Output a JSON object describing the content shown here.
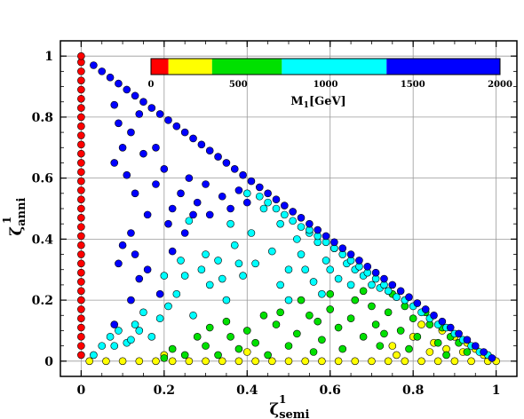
{
  "chart_data": {
    "type": "scatter",
    "x_axis": {
      "label": "ζ",
      "sup": "1",
      "sub": "semi",
      "range": [
        -0.05,
        1.05
      ],
      "ticks": [
        "0",
        "0.2",
        "0.4",
        "0.6",
        "0.8",
        "1"
      ]
    },
    "y_axis": {
      "label": "ζ",
      "sup": "1",
      "sub": "anni",
      "range": [
        -0.05,
        1.05
      ],
      "ticks": [
        "0",
        "0.2",
        "0.4",
        "0.6",
        "0.8",
        "1"
      ]
    },
    "grid": true,
    "colorbar": {
      "title": "M",
      "title_sub": "1",
      "title_suffix": "[GeV]",
      "range": [
        0,
        2000
      ],
      "ticks": [
        "0",
        "500",
        "1000",
        "1500",
        "2000"
      ],
      "bands": [
        {
          "from": 0,
          "to": 100,
          "color": "#ff0000"
        },
        {
          "from": 100,
          "to": 350,
          "color": "#ffff00"
        },
        {
          "from": 350,
          "to": 750,
          "color": "#00e000"
        },
        {
          "from": 750,
          "to": 1350,
          "color": "#00ffff"
        },
        {
          "from": 1350,
          "to": 2000,
          "color": "#0000ff"
        }
      ]
    },
    "series": [
      {
        "mass_band": "0-100 GeV",
        "color": "#ff0000",
        "pattern": "x=0, y in [0,1]",
        "points": [
          [
            0,
            0.02
          ],
          [
            0,
            0.05
          ],
          [
            0,
            0.08
          ],
          [
            0,
            0.11
          ],
          [
            0,
            0.14
          ],
          [
            0,
            0.17
          ],
          [
            0,
            0.2
          ],
          [
            0,
            0.23
          ],
          [
            0,
            0.26
          ],
          [
            0,
            0.29
          ],
          [
            0,
            0.32
          ],
          [
            0,
            0.35
          ],
          [
            0,
            0.38
          ],
          [
            0,
            0.41
          ],
          [
            0,
            0.44
          ],
          [
            0,
            0.47
          ],
          [
            0,
            0.5
          ],
          [
            0,
            0.53
          ],
          [
            0,
            0.56
          ],
          [
            0,
            0.59
          ],
          [
            0,
            0.62
          ],
          [
            0,
            0.65
          ],
          [
            0,
            0.68
          ],
          [
            0,
            0.71
          ],
          [
            0,
            0.74
          ],
          [
            0,
            0.77
          ],
          [
            0,
            0.8
          ],
          [
            0,
            0.83
          ],
          [
            0,
            0.86
          ],
          [
            0,
            0.89
          ],
          [
            0,
            0.92
          ],
          [
            0,
            0.95
          ],
          [
            0,
            0.98
          ],
          [
            0,
            1.0
          ]
        ]
      },
      {
        "mass_band": "100-350 GeV",
        "color": "#ffff00",
        "pattern": "y≈0 and near x+y=1, x>0.75",
        "points": [
          [
            0.02,
            0
          ],
          [
            0.06,
            0
          ],
          [
            0.1,
            0
          ],
          [
            0.14,
            0
          ],
          [
            0.18,
            0
          ],
          [
            0.22,
            0
          ],
          [
            0.26,
            0
          ],
          [
            0.3,
            0
          ],
          [
            0.34,
            0
          ],
          [
            0.38,
            0
          ],
          [
            0.42,
            0
          ],
          [
            0.46,
            0
          ],
          [
            0.5,
            0
          ],
          [
            0.54,
            0
          ],
          [
            0.58,
            0
          ],
          [
            0.62,
            0
          ],
          [
            0.66,
            0
          ],
          [
            0.7,
            0
          ],
          [
            0.74,
            0
          ],
          [
            0.78,
            0
          ],
          [
            0.82,
            0
          ],
          [
            0.86,
            0
          ],
          [
            0.9,
            0
          ],
          [
            0.94,
            0
          ],
          [
            0.98,
            0
          ],
          [
            1.0,
            0
          ],
          [
            0.2,
            0.02
          ],
          [
            0.4,
            0.03
          ],
          [
            0.75,
            0.05
          ],
          [
            0.8,
            0.08
          ],
          [
            0.85,
            0.06
          ],
          [
            0.88,
            0.04
          ],
          [
            0.9,
            0.08
          ],
          [
            0.92,
            0.03
          ],
          [
            0.95,
            0.04
          ],
          [
            0.97,
            0.02
          ],
          [
            0.93,
            0.06
          ],
          [
            0.82,
            0.12
          ],
          [
            0.87,
            0.1
          ],
          [
            0.76,
            0.02
          ],
          [
            0.84,
            0.03
          ]
        ]
      },
      {
        "mass_band": "350-750 GeV",
        "color": "#00e000",
        "pattern": "y<0.2, spread in x",
        "points": [
          [
            0.2,
            0.01
          ],
          [
            0.22,
            0.04
          ],
          [
            0.25,
            0.02
          ],
          [
            0.3,
            0.05
          ],
          [
            0.33,
            0.02
          ],
          [
            0.36,
            0.08
          ],
          [
            0.38,
            0.04
          ],
          [
            0.4,
            0.1
          ],
          [
            0.42,
            0.06
          ],
          [
            0.45,
            0.02
          ],
          [
            0.47,
            0.12
          ],
          [
            0.5,
            0.05
          ],
          [
            0.52,
            0.09
          ],
          [
            0.55,
            0.15
          ],
          [
            0.56,
            0.03
          ],
          [
            0.58,
            0.07
          ],
          [
            0.6,
            0.17
          ],
          [
            0.62,
            0.11
          ],
          [
            0.63,
            0.04
          ],
          [
            0.65,
            0.14
          ],
          [
            0.66,
            0.2
          ],
          [
            0.68,
            0.08
          ],
          [
            0.7,
            0.18
          ],
          [
            0.71,
            0.12
          ],
          [
            0.72,
            0.05
          ],
          [
            0.74,
            0.16
          ],
          [
            0.75,
            0.22
          ],
          [
            0.77,
            0.1
          ],
          [
            0.78,
            0.18
          ],
          [
            0.79,
            0.04
          ],
          [
            0.8,
            0.14
          ],
          [
            0.81,
            0.08
          ],
          [
            0.83,
            0.16
          ],
          [
            0.84,
            0.12
          ],
          [
            0.86,
            0.06
          ],
          [
            0.87,
            0.11
          ],
          [
            0.88,
            0.02
          ],
          [
            0.89,
            0.08
          ],
          [
            0.91,
            0.06
          ],
          [
            0.93,
            0.03
          ],
          [
            0.35,
            0.13
          ],
          [
            0.28,
            0.08
          ],
          [
            0.48,
            0.16
          ],
          [
            0.53,
            0.2
          ],
          [
            0.6,
            0.22
          ],
          [
            0.44,
            0.15
          ],
          [
            0.31,
            0.11
          ],
          [
            0.68,
            0.23
          ],
          [
            0.73,
            0.09
          ],
          [
            0.57,
            0.13
          ]
        ]
      },
      {
        "mass_band": "750-1350 GeV",
        "color": "#00ffff",
        "pattern": "band near x+y=1 and interior",
        "points": [
          [
            0.03,
            0.02
          ],
          [
            0.05,
            0.05
          ],
          [
            0.07,
            0.08
          ],
          [
            0.09,
            0.1
          ],
          [
            0.11,
            0.06
          ],
          [
            0.13,
            0.12
          ],
          [
            0.15,
            0.16
          ],
          [
            0.17,
            0.08
          ],
          [
            0.19,
            0.14
          ],
          [
            0.21,
            0.18
          ],
          [
            0.23,
            0.22
          ],
          [
            0.25,
            0.28
          ],
          [
            0.27,
            0.15
          ],
          [
            0.29,
            0.3
          ],
          [
            0.31,
            0.25
          ],
          [
            0.33,
            0.33
          ],
          [
            0.35,
            0.2
          ],
          [
            0.37,
            0.38
          ],
          [
            0.39,
            0.28
          ],
          [
            0.41,
            0.42
          ],
          [
            0.42,
            0.32
          ],
          [
            0.44,
            0.5
          ],
          [
            0.46,
            0.36
          ],
          [
            0.48,
            0.45
          ],
          [
            0.5,
            0.3
          ],
          [
            0.52,
            0.4
          ],
          [
            0.53,
            0.35
          ],
          [
            0.55,
            0.42
          ],
          [
            0.56,
            0.26
          ],
          [
            0.57,
            0.39
          ],
          [
            0.59,
            0.33
          ],
          [
            0.61,
            0.37
          ],
          [
            0.62,
            0.27
          ],
          [
            0.64,
            0.32
          ],
          [
            0.66,
            0.3
          ],
          [
            0.68,
            0.28
          ],
          [
            0.7,
            0.25
          ],
          [
            0.72,
            0.24
          ],
          [
            0.74,
            0.23
          ],
          [
            0.76,
            0.21
          ],
          [
            0.78,
            0.2
          ],
          [
            0.8,
            0.18
          ],
          [
            0.82,
            0.16
          ],
          [
            0.84,
            0.14
          ],
          [
            0.86,
            0.12
          ],
          [
            0.88,
            0.11
          ],
          [
            0.9,
            0.09
          ],
          [
            0.92,
            0.07
          ],
          [
            0.94,
            0.05
          ],
          [
            0.96,
            0.03
          ],
          [
            0.98,
            0.02
          ],
          [
            0.4,
            0.55
          ],
          [
            0.43,
            0.54
          ],
          [
            0.45,
            0.52
          ],
          [
            0.47,
            0.5
          ],
          [
            0.49,
            0.48
          ],
          [
            0.51,
            0.46
          ],
          [
            0.53,
            0.44
          ],
          [
            0.55,
            0.43
          ],
          [
            0.57,
            0.41
          ],
          [
            0.59,
            0.39
          ],
          [
            0.61,
            0.37
          ],
          [
            0.63,
            0.35
          ],
          [
            0.65,
            0.33
          ],
          [
            0.67,
            0.31
          ],
          [
            0.69,
            0.29
          ],
          [
            0.71,
            0.27
          ],
          [
            0.73,
            0.25
          ],
          [
            0.26,
            0.46
          ],
          [
            0.3,
            0.35
          ],
          [
            0.34,
            0.27
          ],
          [
            0.36,
            0.45
          ],
          [
            0.38,
            0.32
          ],
          [
            0.48,
            0.25
          ],
          [
            0.5,
            0.2
          ],
          [
            0.54,
            0.3
          ],
          [
            0.58,
            0.22
          ],
          [
            0.6,
            0.3
          ],
          [
            0.65,
            0.25
          ],
          [
            0.14,
            0.1
          ],
          [
            0.12,
            0.07
          ],
          [
            0.08,
            0.05
          ],
          [
            0.2,
            0.28
          ],
          [
            0.24,
            0.33
          ]
        ]
      },
      {
        "mass_band": "1350-2000 GeV",
        "color": "#0000ff",
        "pattern": "upper edge near x+y=1 and interior",
        "points": [
          [
            0.03,
            0.97
          ],
          [
            0.05,
            0.95
          ],
          [
            0.07,
            0.93
          ],
          [
            0.09,
            0.91
          ],
          [
            0.11,
            0.89
          ],
          [
            0.13,
            0.87
          ],
          [
            0.15,
            0.85
          ],
          [
            0.17,
            0.83
          ],
          [
            0.19,
            0.81
          ],
          [
            0.21,
            0.79
          ],
          [
            0.23,
            0.77
          ],
          [
            0.25,
            0.75
          ],
          [
            0.27,
            0.73
          ],
          [
            0.29,
            0.71
          ],
          [
            0.31,
            0.69
          ],
          [
            0.33,
            0.67
          ],
          [
            0.35,
            0.65
          ],
          [
            0.37,
            0.63
          ],
          [
            0.39,
            0.61
          ],
          [
            0.41,
            0.59
          ],
          [
            0.43,
            0.57
          ],
          [
            0.45,
            0.55
          ],
          [
            0.47,
            0.53
          ],
          [
            0.49,
            0.51
          ],
          [
            0.51,
            0.49
          ],
          [
            0.53,
            0.47
          ],
          [
            0.55,
            0.45
          ],
          [
            0.57,
            0.43
          ],
          [
            0.59,
            0.41
          ],
          [
            0.61,
            0.39
          ],
          [
            0.63,
            0.37
          ],
          [
            0.65,
            0.35
          ],
          [
            0.67,
            0.33
          ],
          [
            0.69,
            0.31
          ],
          [
            0.71,
            0.29
          ],
          [
            0.73,
            0.27
          ],
          [
            0.75,
            0.25
          ],
          [
            0.77,
            0.23
          ],
          [
            0.79,
            0.21
          ],
          [
            0.81,
            0.19
          ],
          [
            0.83,
            0.17
          ],
          [
            0.85,
            0.15
          ],
          [
            0.87,
            0.13
          ],
          [
            0.89,
            0.11
          ],
          [
            0.91,
            0.09
          ],
          [
            0.93,
            0.07
          ],
          [
            0.95,
            0.05
          ],
          [
            0.97,
            0.03
          ],
          [
            0.99,
            0.01
          ],
          [
            0.08,
            0.84
          ],
          [
            0.09,
            0.78
          ],
          [
            0.1,
            0.7
          ],
          [
            0.08,
            0.65
          ],
          [
            0.11,
            0.61
          ],
          [
            0.12,
            0.75
          ],
          [
            0.13,
            0.55
          ],
          [
            0.14,
            0.81
          ],
          [
            0.15,
            0.68
          ],
          [
            0.16,
            0.48
          ],
          [
            0.1,
            0.38
          ],
          [
            0.12,
            0.42
          ],
          [
            0.09,
            0.32
          ],
          [
            0.14,
            0.27
          ],
          [
            0.16,
            0.3
          ],
          [
            0.12,
            0.2
          ],
          [
            0.08,
            0.12
          ],
          [
            0.18,
            0.58
          ],
          [
            0.2,
            0.63
          ],
          [
            0.22,
            0.5
          ],
          [
            0.24,
            0.55
          ],
          [
            0.21,
            0.45
          ],
          [
            0.26,
            0.6
          ],
          [
            0.28,
            0.52
          ],
          [
            0.3,
            0.58
          ],
          [
            0.31,
            0.48
          ],
          [
            0.34,
            0.54
          ],
          [
            0.36,
            0.5
          ],
          [
            0.38,
            0.56
          ],
          [
            0.4,
            0.52
          ],
          [
            0.18,
            0.7
          ],
          [
            0.25,
            0.42
          ],
          [
            0.22,
            0.36
          ],
          [
            0.27,
            0.48
          ],
          [
            0.19,
            0.22
          ],
          [
            0.13,
            0.35
          ]
        ]
      }
    ]
  }
}
